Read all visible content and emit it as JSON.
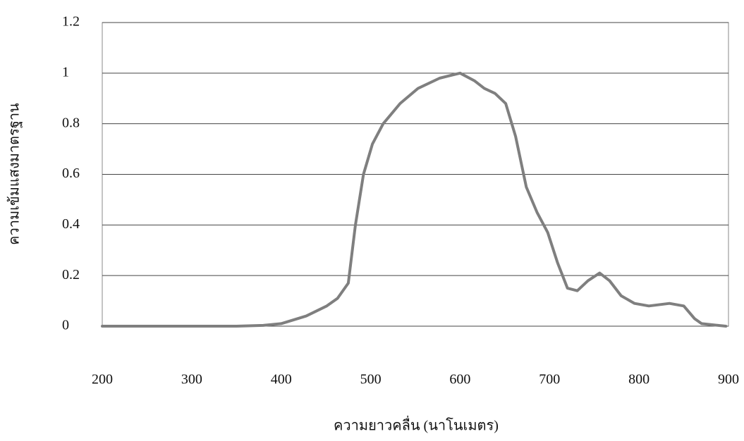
{
  "chart_data": {
    "type": "line",
    "x_label": "ความยาวคลื่น (นาโนเมตร)",
    "y_label": "ความเข้มแสงมาตรฐาน",
    "x": [
      200,
      350,
      380,
      400,
      428,
      451,
      463,
      475,
      483,
      492,
      502,
      514,
      533,
      553,
      577,
      600,
      616,
      627,
      639,
      651,
      662,
      674,
      686,
      698,
      709,
      720,
      731,
      743,
      756,
      767,
      780,
      795,
      811,
      834,
      850,
      862,
      870,
      897
    ],
    "series": [
      {
        "color": "#7f7f7f",
        "values": [
          0,
          0,
          0.003,
          0.01,
          0.04,
          0.08,
          0.11,
          0.17,
          0.4,
          0.6,
          0.72,
          0.8,
          0.88,
          0.94,
          0.98,
          1.0,
          0.97,
          0.94,
          0.92,
          0.88,
          0.75,
          0.55,
          0.45,
          0.37,
          0.25,
          0.15,
          0.14,
          0.18,
          0.21,
          0.18,
          0.12,
          0.09,
          0.08,
          0.09,
          0.08,
          0.03,
          0.01,
          0
        ]
      }
    ],
    "xlim": [
      200,
      900
    ],
    "xticks": [
      200,
      300,
      400,
      500,
      600,
      700,
      800,
      900
    ],
    "ylim": [
      0,
      1.2
    ],
    "yticks": [
      0,
      0.2,
      0.4,
      0.6,
      0.8,
      1,
      1.2
    ],
    "grid": true
  }
}
